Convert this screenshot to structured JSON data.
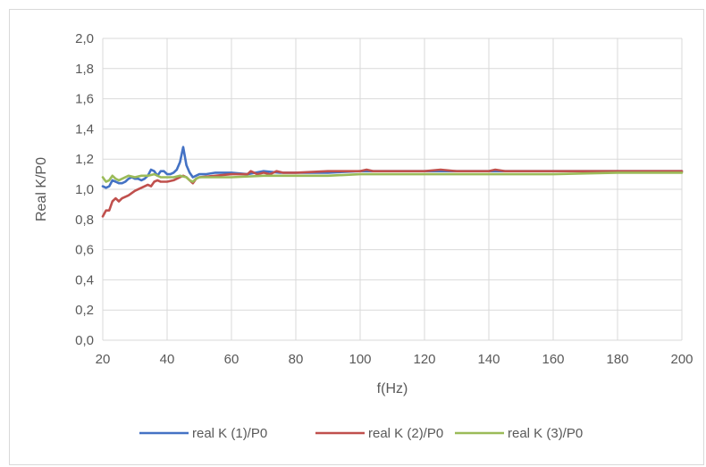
{
  "chart_data": {
    "type": "line",
    "title": "",
    "xlabel": "f(Hz)",
    "ylabel": "Real K/P0",
    "xlim": [
      20,
      200
    ],
    "ylim": [
      0.0,
      2.0
    ],
    "x_ticks": [
      20,
      40,
      60,
      80,
      100,
      120,
      140,
      160,
      180,
      200
    ],
    "x_tick_labels": [
      "20",
      "40",
      "60",
      "80",
      "100",
      "120",
      "140",
      "160",
      "180",
      "200"
    ],
    "y_ticks": [
      0.0,
      0.2,
      0.4,
      0.6,
      0.8,
      1.0,
      1.2,
      1.4,
      1.6,
      1.8,
      2.0
    ],
    "y_tick_labels": [
      "0,0",
      "0,2",
      "0,4",
      "0,6",
      "0,8",
      "1,0",
      "1,2",
      "1,4",
      "1,6",
      "1,8",
      "2,0"
    ],
    "grid": "vertical and horizontal gridlines on",
    "legend_position": "bottom",
    "series": [
      {
        "name": "real K (1)/P0",
        "color": "#4472c4",
        "points": [
          [
            20,
            1.02
          ],
          [
            21,
            1.01
          ],
          [
            22,
            1.02
          ],
          [
            23,
            1.06
          ],
          [
            24,
            1.05
          ],
          [
            25,
            1.04
          ],
          [
            26,
            1.04
          ],
          [
            27,
            1.05
          ],
          [
            28,
            1.07
          ],
          [
            29,
            1.08
          ],
          [
            30,
            1.07
          ],
          [
            31,
            1.07
          ],
          [
            32,
            1.06
          ],
          [
            33,
            1.07
          ],
          [
            34,
            1.09
          ],
          [
            35,
            1.13
          ],
          [
            36,
            1.12
          ],
          [
            37,
            1.09
          ],
          [
            38,
            1.12
          ],
          [
            39,
            1.12
          ],
          [
            40,
            1.1
          ],
          [
            41,
            1.1
          ],
          [
            42,
            1.11
          ],
          [
            43,
            1.13
          ],
          [
            44,
            1.18
          ],
          [
            45,
            1.28
          ],
          [
            46,
            1.16
          ],
          [
            47,
            1.11
          ],
          [
            48,
            1.08
          ],
          [
            49,
            1.09
          ],
          [
            50,
            1.1
          ],
          [
            52,
            1.1
          ],
          [
            55,
            1.11
          ],
          [
            60,
            1.11
          ],
          [
            65,
            1.1
          ],
          [
            70,
            1.12
          ],
          [
            75,
            1.11
          ],
          [
            80,
            1.11
          ],
          [
            90,
            1.11
          ],
          [
            100,
            1.12
          ],
          [
            110,
            1.12
          ],
          [
            120,
            1.12
          ],
          [
            130,
            1.12
          ],
          [
            140,
            1.12
          ],
          [
            150,
            1.12
          ],
          [
            160,
            1.12
          ],
          [
            170,
            1.12
          ],
          [
            180,
            1.12
          ],
          [
            190,
            1.12
          ],
          [
            200,
            1.12
          ]
        ]
      },
      {
        "name": "real K (2)/P0",
        "color": "#c0504d",
        "points": [
          [
            20,
            0.82
          ],
          [
            21,
            0.86
          ],
          [
            22,
            0.86
          ],
          [
            23,
            0.92
          ],
          [
            24,
            0.94
          ],
          [
            25,
            0.92
          ],
          [
            26,
            0.94
          ],
          [
            28,
            0.96
          ],
          [
            30,
            0.99
          ],
          [
            32,
            1.01
          ],
          [
            34,
            1.03
          ],
          [
            35,
            1.02
          ],
          [
            36,
            1.05
          ],
          [
            37,
            1.06
          ],
          [
            38,
            1.05
          ],
          [
            40,
            1.05
          ],
          [
            42,
            1.06
          ],
          [
            43,
            1.07
          ],
          [
            44,
            1.08
          ],
          [
            45,
            1.09
          ],
          [
            46,
            1.08
          ],
          [
            47,
            1.06
          ],
          [
            48,
            1.04
          ],
          [
            49,
            1.07
          ],
          [
            50,
            1.08
          ],
          [
            55,
            1.09
          ],
          [
            60,
            1.1
          ],
          [
            65,
            1.1
          ],
          [
            66,
            1.12
          ],
          [
            68,
            1.1
          ],
          [
            70,
            1.11
          ],
          [
            72,
            1.1
          ],
          [
            74,
            1.12
          ],
          [
            76,
            1.11
          ],
          [
            80,
            1.11
          ],
          [
            90,
            1.12
          ],
          [
            100,
            1.12
          ],
          [
            102,
            1.13
          ],
          [
            104,
            1.12
          ],
          [
            110,
            1.12
          ],
          [
            120,
            1.12
          ],
          [
            125,
            1.13
          ],
          [
            130,
            1.12
          ],
          [
            140,
            1.12
          ],
          [
            142,
            1.13
          ],
          [
            145,
            1.12
          ],
          [
            150,
            1.12
          ],
          [
            160,
            1.12
          ],
          [
            170,
            1.12
          ],
          [
            180,
            1.12
          ],
          [
            190,
            1.12
          ],
          [
            200,
            1.12
          ]
        ]
      },
      {
        "name": "real K (3)/P0",
        "color": "#9bbb59",
        "points": [
          [
            20,
            1.08
          ],
          [
            21,
            1.05
          ],
          [
            22,
            1.06
          ],
          [
            23,
            1.09
          ],
          [
            24,
            1.07
          ],
          [
            25,
            1.06
          ],
          [
            26,
            1.07
          ],
          [
            28,
            1.09
          ],
          [
            30,
            1.08
          ],
          [
            32,
            1.09
          ],
          [
            34,
            1.09
          ],
          [
            36,
            1.1
          ],
          [
            38,
            1.08
          ],
          [
            40,
            1.08
          ],
          [
            42,
            1.08
          ],
          [
            44,
            1.09
          ],
          [
            46,
            1.08
          ],
          [
            47,
            1.06
          ],
          [
            48,
            1.05
          ],
          [
            49,
            1.07
          ],
          [
            50,
            1.08
          ],
          [
            55,
            1.08
          ],
          [
            60,
            1.08
          ],
          [
            70,
            1.09
          ],
          [
            80,
            1.09
          ],
          [
            90,
            1.09
          ],
          [
            100,
            1.1
          ],
          [
            120,
            1.1
          ],
          [
            140,
            1.1
          ],
          [
            160,
            1.1
          ],
          [
            180,
            1.11
          ],
          [
            200,
            1.11
          ]
        ]
      }
    ]
  }
}
